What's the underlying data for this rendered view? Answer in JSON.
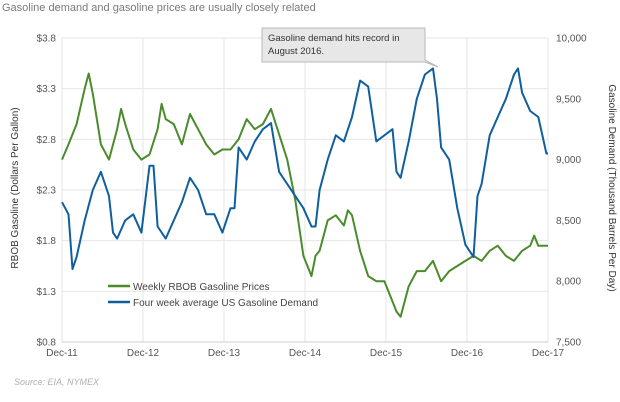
{
  "header": {
    "title": "Gasoline demand and gasoline prices are usually closely related"
  },
  "source_text": "Source: EIA, NYMEX",
  "colors": {
    "gasoline_price": "#4a8b2c",
    "gasoline_demand": "#0f5f9f",
    "grid": "#e6e6e6",
    "annotation_fill": "#e7e7e7"
  },
  "chart_data": {
    "type": "line",
    "title": "Gasoline demand and gasoline prices are usually closely related",
    "x_ticks": [
      "Dec-11",
      "Dec-12",
      "Dec-13",
      "Dec-14",
      "Dec-15",
      "Dec-16",
      "Dec-17"
    ],
    "y_left": {
      "label": "RBOB Gasoline (Dollars Per Gallon)",
      "ticks": [
        "$0.8",
        "$1.3",
        "$1.8",
        "$2.3",
        "$2.8",
        "$3.3",
        "$3.8"
      ],
      "range": [
        0.8,
        3.8
      ]
    },
    "y_right": {
      "label": "Gasoline Demand (Thousand Barrels Per Day)",
      "ticks": [
        "7,500",
        "8,000",
        "8,500",
        "9,000",
        "9,500",
        "10,000"
      ],
      "range": [
        7500,
        10000
      ]
    },
    "annotation": {
      "text_line1": "Gasoline demand hits record in",
      "text_line2": "August  2016."
    },
    "series": [
      {
        "name": "Weekly RBOB Gasoline Prices",
        "axis": "left",
        "x": [
          2011.92,
          2012.0,
          2012.1,
          2012.2,
          2012.25,
          2012.3,
          2012.4,
          2012.5,
          2012.6,
          2012.65,
          2012.7,
          2012.8,
          2012.9,
          2013.0,
          2013.1,
          2013.15,
          2013.2,
          2013.3,
          2013.4,
          2013.5,
          2013.6,
          2013.7,
          2013.8,
          2013.9,
          2014.0,
          2014.1,
          2014.2,
          2014.3,
          2014.4,
          2014.5,
          2014.6,
          2014.7,
          2014.8,
          2014.9,
          2015.0,
          2015.05,
          2015.1,
          2015.2,
          2015.3,
          2015.4,
          2015.45,
          2015.5,
          2015.6,
          2015.7,
          2015.8,
          2015.9,
          2016.0,
          2016.05,
          2016.1,
          2016.2,
          2016.3,
          2016.4,
          2016.5,
          2016.6,
          2016.7,
          2016.8,
          2016.9,
          2017.0,
          2017.1,
          2017.2,
          2017.3,
          2017.4,
          2017.5,
          2017.6,
          2017.7,
          2017.75,
          2017.8,
          2017.92
        ],
        "y": [
          2.6,
          2.75,
          2.95,
          3.3,
          3.45,
          3.25,
          2.75,
          2.6,
          2.9,
          3.1,
          2.95,
          2.7,
          2.6,
          2.65,
          2.9,
          3.15,
          3.0,
          2.95,
          2.75,
          3.05,
          2.9,
          2.75,
          2.65,
          2.7,
          2.7,
          2.8,
          3.0,
          2.9,
          2.95,
          3.1,
          2.85,
          2.6,
          2.2,
          1.65,
          1.45,
          1.65,
          1.7,
          2.0,
          2.05,
          1.95,
          2.1,
          2.05,
          1.7,
          1.45,
          1.4,
          1.4,
          1.2,
          1.1,
          1.05,
          1.35,
          1.5,
          1.5,
          1.6,
          1.4,
          1.5,
          1.55,
          1.6,
          1.65,
          1.6,
          1.7,
          1.75,
          1.65,
          1.6,
          1.7,
          1.75,
          1.85,
          1.75,
          1.75
        ]
      },
      {
        "name": "Four week average US Gasoline Demand",
        "axis": "right",
        "x": [
          2011.92,
          2012.0,
          2012.05,
          2012.1,
          2012.2,
          2012.3,
          2012.4,
          2012.5,
          2012.55,
          2012.6,
          2012.7,
          2012.8,
          2012.9,
          2013.0,
          2013.05,
          2013.1,
          2013.2,
          2013.3,
          2013.4,
          2013.5,
          2013.6,
          2013.7,
          2013.8,
          2013.9,
          2014.0,
          2014.05,
          2014.1,
          2014.2,
          2014.3,
          2014.4,
          2014.5,
          2014.6,
          2014.7,
          2014.8,
          2014.9,
          2015.0,
          2015.05,
          2015.1,
          2015.2,
          2015.3,
          2015.4,
          2015.5,
          2015.6,
          2015.7,
          2015.8,
          2015.9,
          2016.0,
          2016.05,
          2016.1,
          2016.2,
          2016.3,
          2016.4,
          2016.5,
          2016.55,
          2016.6,
          2016.7,
          2016.8,
          2016.9,
          2017.0,
          2017.05,
          2017.1,
          2017.2,
          2017.3,
          2017.4,
          2017.5,
          2017.55,
          2017.6,
          2017.7,
          2017.8,
          2017.9,
          2017.92
        ],
        "y": [
          8.65,
          8.55,
          8.1,
          8.2,
          8.5,
          8.75,
          8.9,
          8.7,
          8.4,
          8.35,
          8.5,
          8.55,
          8.4,
          8.95,
          8.95,
          8.45,
          8.35,
          8.5,
          8.65,
          8.85,
          8.75,
          8.55,
          8.55,
          8.4,
          8.6,
          8.6,
          9.1,
          9.0,
          9.15,
          9.25,
          9.3,
          8.9,
          8.8,
          8.7,
          8.6,
          8.45,
          8.45,
          8.75,
          9.0,
          9.2,
          9.15,
          9.35,
          9.65,
          9.6,
          9.15,
          9.2,
          9.25,
          8.9,
          8.85,
          9.15,
          9.5,
          9.7,
          9.75,
          9.5,
          9.1,
          9.0,
          8.6,
          8.3,
          8.2,
          8.7,
          8.8,
          9.2,
          9.35,
          9.5,
          9.7,
          9.75,
          9.55,
          9.4,
          9.35,
          9.05,
          9.05
        ]
      }
    ]
  }
}
